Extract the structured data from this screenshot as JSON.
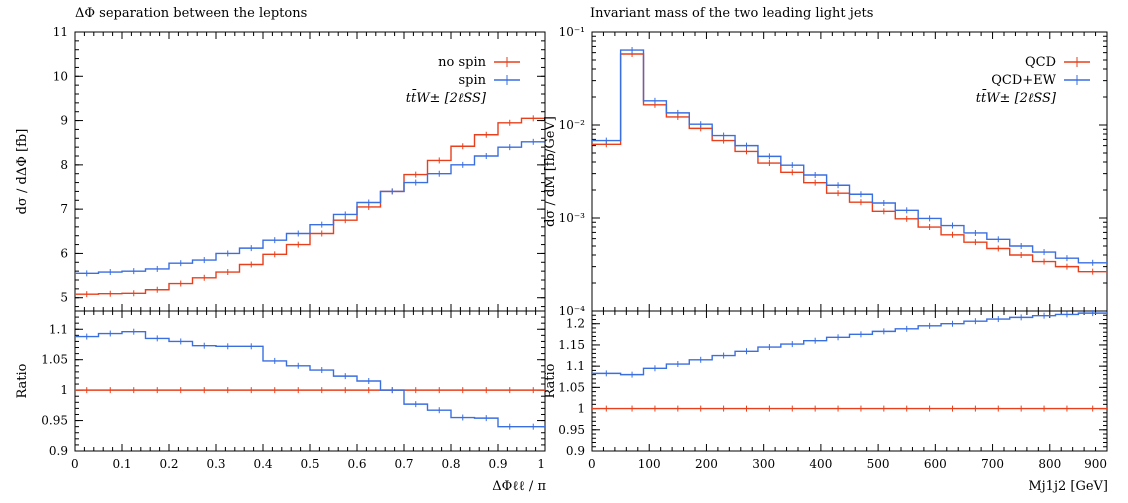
{
  "colors": {
    "red": "#e8401c",
    "blue": "#3a6fe0"
  },
  "chart_data": [
    {
      "type": "line",
      "title": "ΔΦ separation between the leptons",
      "xlabel": "ΔΦℓℓ / π",
      "ylabel": "dσ / dΔΦ [fb]",
      "ratio_ylabel": "Ratio",
      "xlim": [
        0,
        1
      ],
      "ylim": [
        4.7,
        11
      ],
      "ratio_ylim": [
        0.9,
        1.13
      ],
      "x_ticks": [
        "0",
        "0.1",
        "0.2",
        "0.3",
        "0.4",
        "0.5",
        "0.6",
        "0.7",
        "0.8",
        "0.9",
        "1"
      ],
      "y_ticks": [
        "5",
        "6",
        "7",
        "8",
        "9",
        "10",
        "11"
      ],
      "ratio_y_ticks": [
        "0.9",
        "0.95",
        "1",
        "1.05",
        "1.1"
      ],
      "legend_position": "top-right",
      "legend_note": "tt̄W± [2ℓSS]",
      "bin_edges": [
        0,
        0.05,
        0.1,
        0.15,
        0.2,
        0.25,
        0.3,
        0.35,
        0.4,
        0.45,
        0.5,
        0.55,
        0.6,
        0.65,
        0.7,
        0.75,
        0.8,
        0.85,
        0.9,
        0.95,
        1.0
      ],
      "series": [
        {
          "name": "no spin",
          "color": "#e8401c",
          "values": [
            5.08,
            5.09,
            5.1,
            5.18,
            5.32,
            5.45,
            5.58,
            5.75,
            5.98,
            6.2,
            6.45,
            6.75,
            7.05,
            7.4,
            7.78,
            8.1,
            8.42,
            8.68,
            8.95,
            9.05
          ]
        },
        {
          "name": "spin",
          "color": "#3a6fe0",
          "values": [
            5.55,
            5.58,
            5.6,
            5.65,
            5.78,
            5.85,
            6.0,
            6.12,
            6.3,
            6.45,
            6.65,
            6.88,
            7.15,
            7.4,
            7.6,
            7.8,
            8.0,
            8.2,
            8.4,
            8.52
          ]
        }
      ],
      "ratio_series": [
        {
          "color": "#e8401c",
          "values": [
            1,
            1,
            1,
            1,
            1,
            1,
            1,
            1,
            1,
            1,
            1,
            1,
            1,
            1,
            1,
            1,
            1,
            1,
            1,
            1
          ]
        },
        {
          "color": "#3a6fe0",
          "values": [
            1.088,
            1.093,
            1.096,
            1.085,
            1.08,
            1.073,
            1.072,
            1.072,
            1.048,
            1.04,
            1.033,
            1.023,
            1.015,
            1.0,
            0.977,
            0.967,
            0.955,
            0.954,
            0.94,
            0.94
          ]
        }
      ]
    },
    {
      "type": "line",
      "title": "Invariant mass of the two leading light jets",
      "xlabel": "Mj1j2 [GeV]",
      "ylabel": "dσ / dM [fb/GeV]",
      "ratio_ylabel": "Ratio",
      "xlim": [
        0,
        900
      ],
      "ylim": [
        0.0001,
        0.1
      ],
      "y_scale": "log",
      "ratio_ylim": [
        0.9,
        1.23
      ],
      "x_ticks": [
        "0",
        "100",
        "200",
        "300",
        "400",
        "500",
        "600",
        "700",
        "800",
        "900"
      ],
      "y_ticks": [
        "10⁻⁴",
        "10⁻³",
        "10⁻²",
        "10⁻¹"
      ],
      "ratio_y_ticks": [
        "0.9",
        "0.95",
        "1",
        "1.05",
        "1.1",
        "1.15",
        "1.2"
      ],
      "legend_position": "top-right",
      "legend_note": "tt̄W± [2ℓSS]",
      "bin_edges": [
        0,
        50,
        90,
        130,
        170,
        210,
        250,
        290,
        330,
        370,
        410,
        450,
        490,
        530,
        570,
        610,
        650,
        690,
        730,
        770,
        810,
        850,
        900
      ],
      "series": [
        {
          "name": "QCD",
          "color": "#e8401c",
          "values": [
            0.0062,
            0.058,
            0.0165,
            0.0122,
            0.0092,
            0.0068,
            0.0052,
            0.0039,
            0.0031,
            0.0024,
            0.00185,
            0.00148,
            0.00118,
            0.00098,
            0.0008,
            0.00066,
            0.00055,
            0.00047,
            0.0004,
            0.00034,
            0.0003,
            0.000265
          ]
        },
        {
          "name": "QCD+EW",
          "color": "#3a6fe0",
          "values": [
            0.0068,
            0.064,
            0.0182,
            0.0135,
            0.0102,
            0.0077,
            0.006,
            0.0046,
            0.0037,
            0.0029,
            0.00225,
            0.0018,
            0.00145,
            0.00121,
            0.00099,
            0.00083,
            0.00069,
            0.00059,
            0.0005,
            0.00043,
            0.00037,
            0.00033
          ]
        }
      ],
      "ratio_series": [
        {
          "color": "#e8401c",
          "values": [
            1,
            1,
            1,
            1,
            1,
            1,
            1,
            1,
            1,
            1,
            1,
            1,
            1,
            1,
            1,
            1,
            1,
            1,
            1,
            1,
            1,
            1
          ]
        },
        {
          "color": "#3a6fe0",
          "values": [
            1.083,
            1.08,
            1.095,
            1.105,
            1.115,
            1.125,
            1.135,
            1.145,
            1.152,
            1.16,
            1.168,
            1.175,
            1.182,
            1.188,
            1.195,
            1.2,
            1.206,
            1.211,
            1.215,
            1.219,
            1.222,
            1.225
          ]
        }
      ]
    }
  ]
}
